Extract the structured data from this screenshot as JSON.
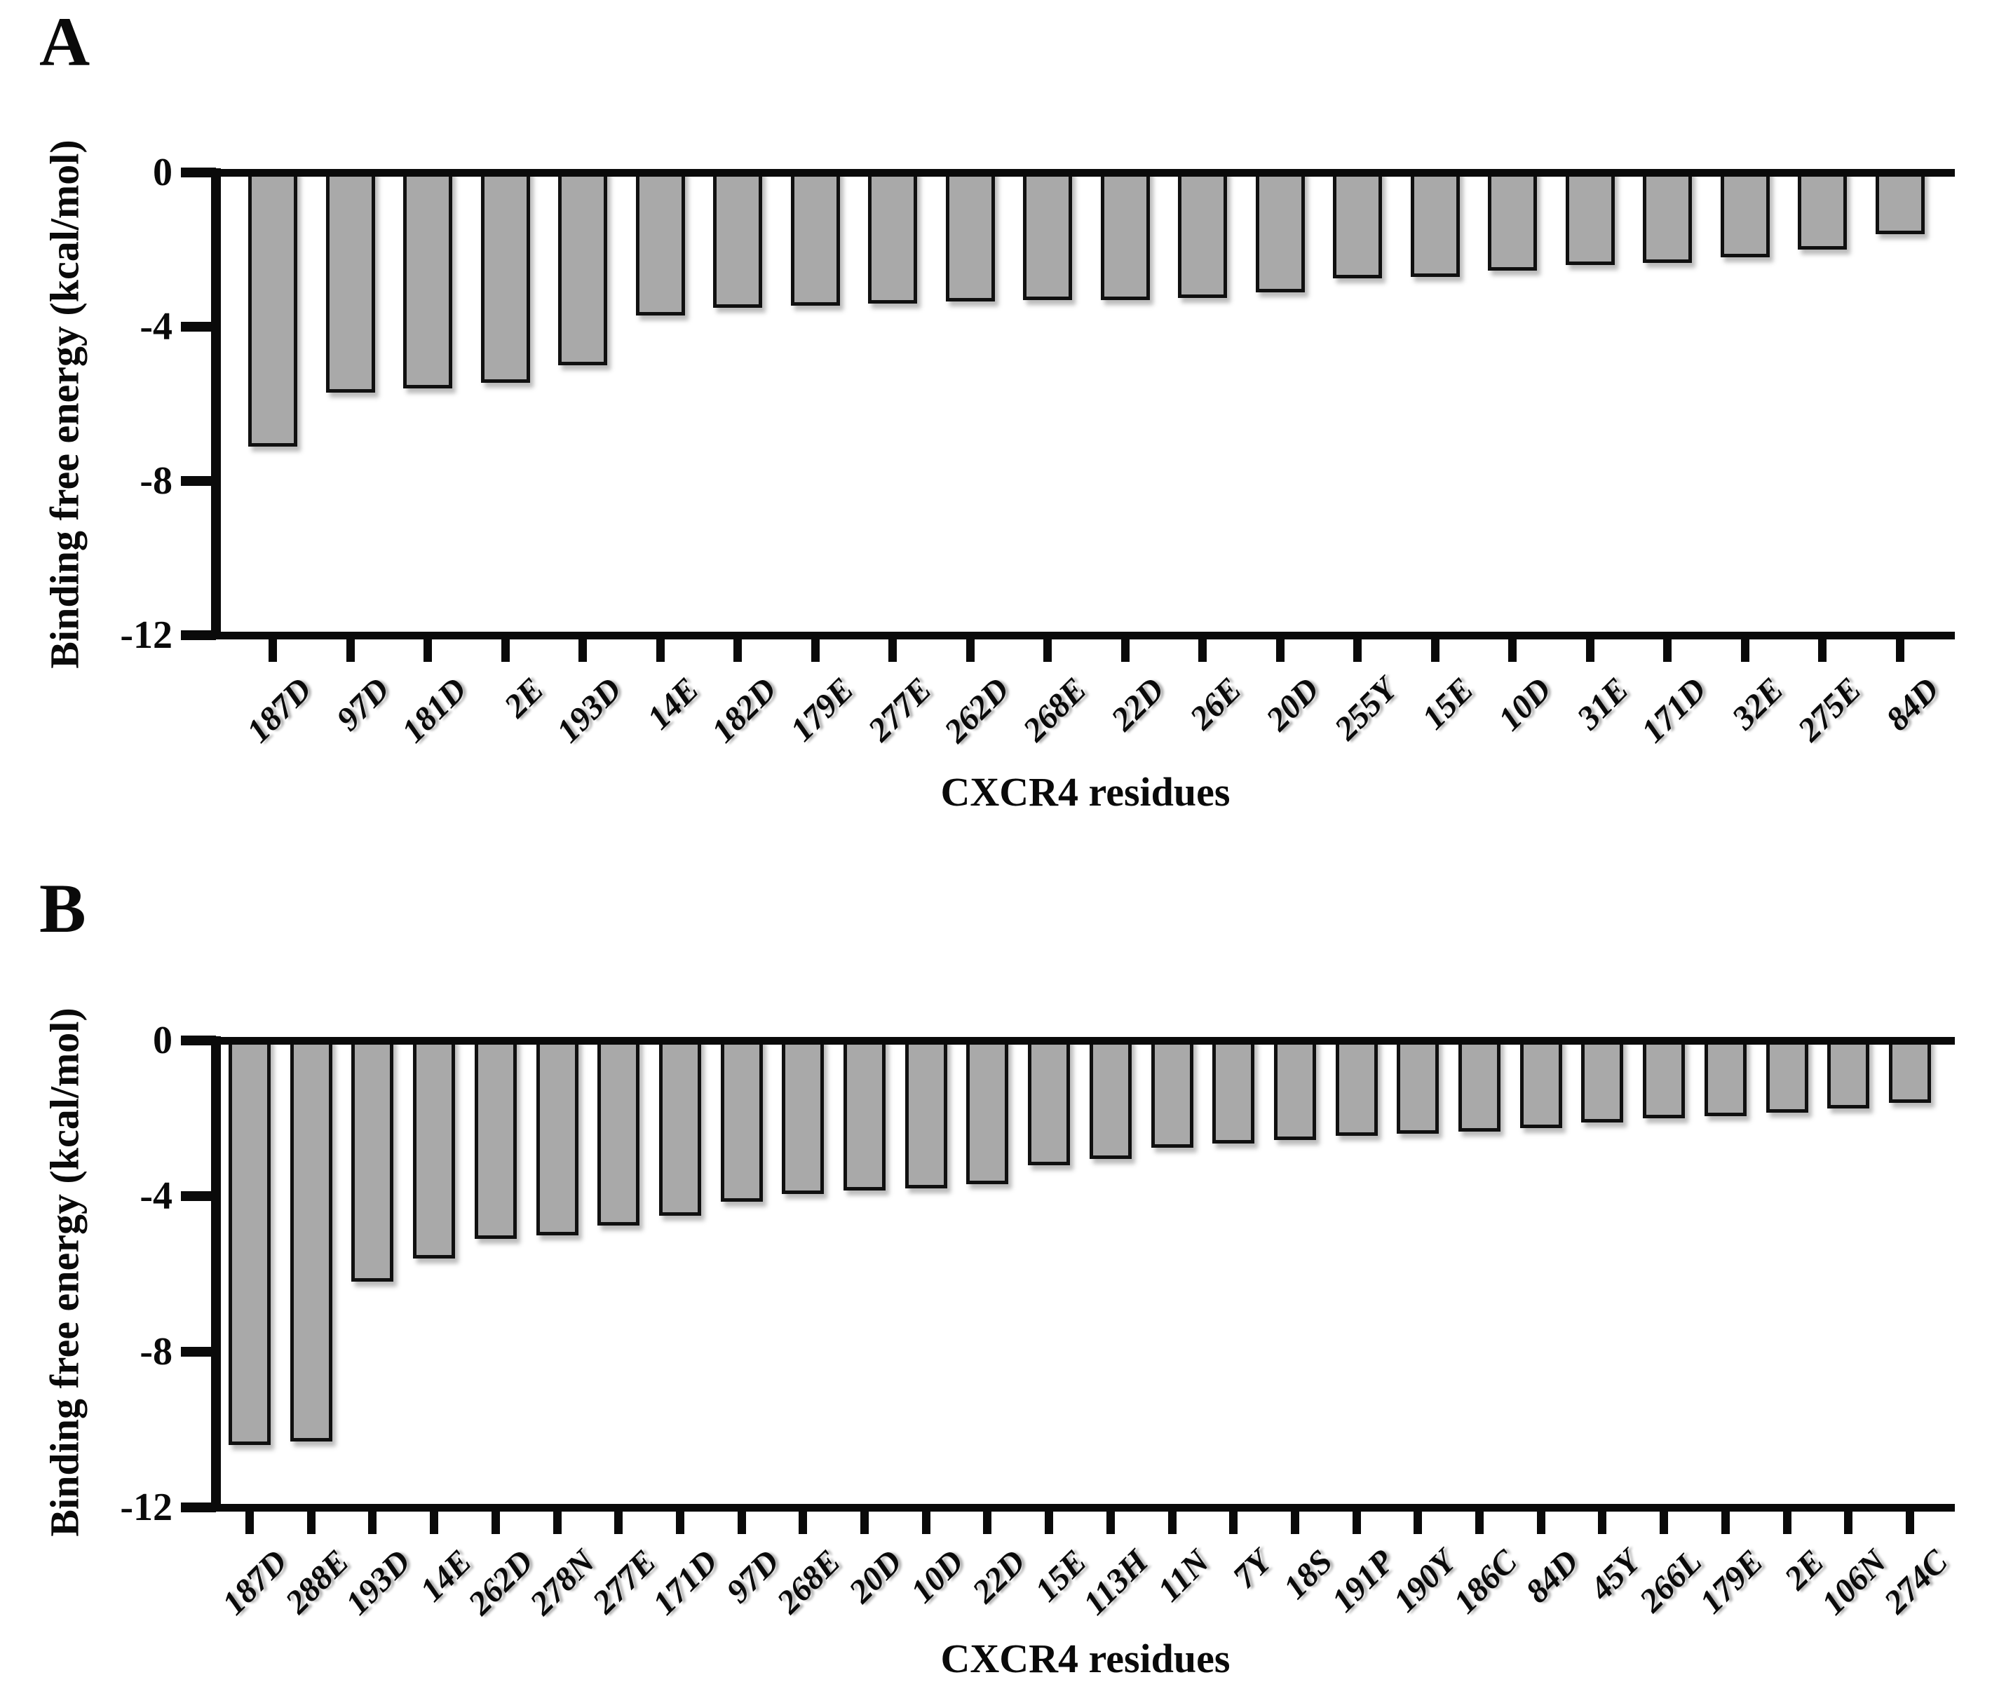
{
  "figure_title": "",
  "colors": {
    "bar_fill": "#a9a9a9",
    "bar_edge": "#101010",
    "axis": "#0a0a0a",
    "background": "#ffffff"
  },
  "chart_data": [
    {
      "type": "bar",
      "panel": "A",
      "panel_label": "A",
      "title": "",
      "xlabel": "CXCR4 residues",
      "ylabel": "Binding free energy (kcal/mol)",
      "ylim": [
        -12,
        0
      ],
      "yticks": [
        0,
        -4,
        -8,
        -12
      ],
      "ytick_labels": [
        "0",
        "-4",
        "-8",
        "-12"
      ],
      "grid": false,
      "legend": null,
      "bar_color": "#a9a9a9",
      "categories": [
        "187D",
        "97D",
        "181D",
        "2E",
        "193D",
        "14E",
        "182D",
        "179E",
        "277E",
        "262D",
        "268E",
        "22D",
        "26E",
        "20D",
        "255Y",
        "15E",
        "10D",
        "31E",
        "171D",
        "32E",
        "275E",
        "84D"
      ],
      "values": [
        -7.1,
        -5.7,
        -5.6,
        -5.45,
        -5.0,
        -3.7,
        -3.5,
        -3.45,
        -3.4,
        -3.35,
        -3.3,
        -3.3,
        -3.25,
        -3.1,
        -2.75,
        -2.7,
        -2.55,
        -2.4,
        -2.35,
        -2.2,
        -2.0,
        -1.6
      ]
    },
    {
      "type": "bar",
      "panel": "B",
      "panel_label": "B",
      "title": "",
      "xlabel": "CXCR4 residues",
      "ylabel": "Binding free energy (kcal/mol)",
      "ylim": [
        -12,
        0
      ],
      "yticks": [
        0,
        -4,
        -8,
        -12
      ],
      "ytick_labels": [
        "0",
        "-4",
        "-8",
        "-12"
      ],
      "grid": false,
      "legend": null,
      "bar_color": "#a9a9a9",
      "categories": [
        "187D",
        "288E",
        "193D",
        "14E",
        "262D",
        "278N",
        "277E",
        "171D",
        "97D",
        "268E",
        "20D",
        "10D",
        "22D",
        "15E",
        "113H",
        "11N",
        "7Y",
        "18S",
        "191P",
        "190Y",
        "186C",
        "84D",
        "45Y",
        "266L",
        "179E",
        "2E",
        "106N",
        "274C"
      ],
      "values": [
        -10.4,
        -10.3,
        -6.2,
        -5.6,
        -5.1,
        -5.0,
        -4.75,
        -4.5,
        -4.15,
        -3.95,
        -3.85,
        -3.8,
        -3.7,
        -3.2,
        -3.05,
        -2.75,
        -2.65,
        -2.55,
        -2.45,
        -2.4,
        -2.35,
        -2.25,
        -2.1,
        -2.0,
        -1.95,
        -1.85,
        -1.75,
        -1.6
      ]
    }
  ]
}
